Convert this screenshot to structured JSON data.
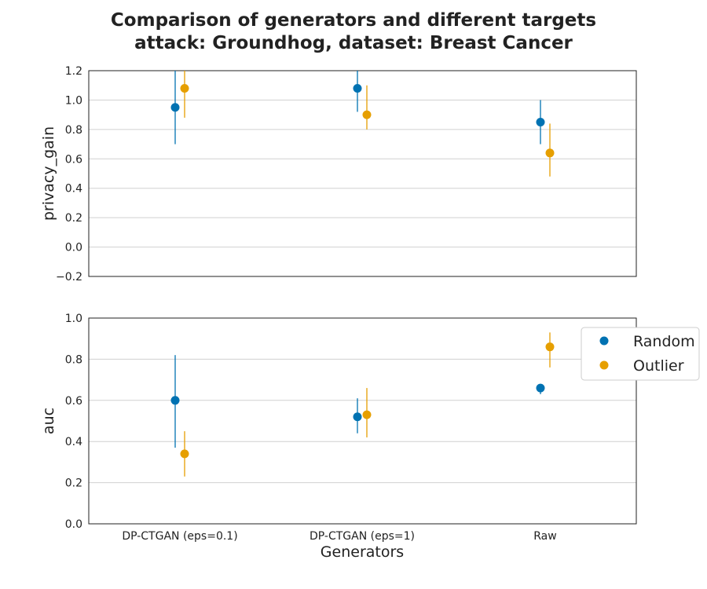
{
  "chart_data": {
    "type": "scatter",
    "title": [
      "Comparison of generators and different targets",
      "attack: Groundhog, dataset: Breast Cancer"
    ],
    "xlabel": "Generators",
    "categories": [
      "DP-CTGAN (eps=0.1)",
      "DP-CTGAN (eps=1)",
      "Raw"
    ],
    "legend": {
      "position": "right",
      "entries": [
        "Random",
        "Outlier"
      ]
    },
    "colors": {
      "Random": "#0072B2",
      "Outlier": "#E69F00"
    },
    "grid": "y",
    "panels": [
      {
        "ylabel": "privacy_gain",
        "ylim": [
          -0.2,
          1.2
        ],
        "yticks": [
          "−0.2",
          "0.0",
          "0.2",
          "0.4",
          "0.6",
          "0.8",
          "1.0",
          "1.2"
        ],
        "ytick_values": [
          -0.2,
          0.0,
          0.2,
          0.4,
          0.6,
          0.8,
          1.0,
          1.2
        ],
        "series": [
          {
            "name": "Random",
            "values": [
              0.95,
              1.08,
              0.85
            ],
            "err_low": [
              0.7,
              0.92,
              0.7
            ],
            "err_high": [
              1.2,
              1.2,
              1.0
            ]
          },
          {
            "name": "Outlier",
            "values": [
              1.08,
              0.9,
              0.64
            ],
            "err_low": [
              0.88,
              0.8,
              0.48
            ],
            "err_high": [
              1.2,
              1.1,
              0.84
            ]
          }
        ]
      },
      {
        "ylabel": "auc",
        "ylim": [
          0.0,
          1.0
        ],
        "yticks": [
          "0.0",
          "0.2",
          "0.4",
          "0.6",
          "0.8",
          "1.0"
        ],
        "ytick_values": [
          0.0,
          0.2,
          0.4,
          0.6,
          0.8,
          1.0
        ],
        "series": [
          {
            "name": "Random",
            "values": [
              0.6,
              0.52,
              0.66
            ],
            "err_low": [
              0.37,
              0.44,
              0.63
            ],
            "err_high": [
              0.82,
              0.61,
              0.68
            ]
          },
          {
            "name": "Outlier",
            "values": [
              0.34,
              0.53,
              0.86
            ],
            "err_low": [
              0.23,
              0.42,
              0.76
            ],
            "err_high": [
              0.45,
              0.66,
              0.93
            ]
          }
        ]
      }
    ]
  }
}
